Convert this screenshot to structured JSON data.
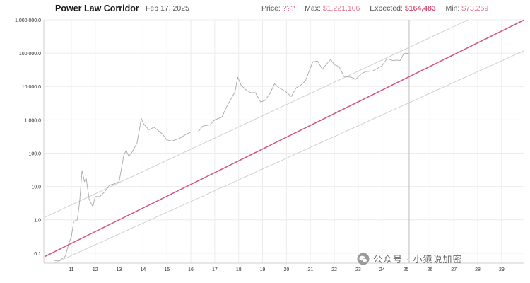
{
  "header": {
    "title": "Power Law Corridor",
    "date": "Feb 17, 2025",
    "price_label": "Price:",
    "price_value": "???",
    "max_label": "Max:",
    "max_value": "$1,221,106",
    "expected_label": "Expected:",
    "expected_value": "$164,483",
    "min_label": "Min:",
    "min_value": "$73,269"
  },
  "watermark": {
    "text": "公众号 · 小猿说加密"
  },
  "colors": {
    "expected_line": "#d2557a",
    "bound_line": "#cccccc",
    "price_line": "#a9a9a9",
    "accent": "#e0708a"
  },
  "chart_data": {
    "type": "line",
    "title": "Power Law Corridor",
    "y_scale": "log",
    "ylim": [
      0.05,
      1000000
    ],
    "xlim": [
      2009.85,
      2029.95
    ],
    "grid": true,
    "y_ticks": [
      {
        "v": 0.1,
        "label": "0.1"
      },
      {
        "v": 1,
        "label": "1.0"
      },
      {
        "v": 10,
        "label": "10.0"
      },
      {
        "v": 100,
        "label": "100.0"
      },
      {
        "v": 1000,
        "label": "1,000.0"
      },
      {
        "v": 10000,
        "label": "10,000.0"
      },
      {
        "v": 100000,
        "label": "100,000.0"
      },
      {
        "v": 1000000,
        "label": "1,000,000.0"
      }
    ],
    "x_ticks": [
      {
        "v": 2011,
        "label": "11"
      },
      {
        "v": 2012,
        "label": "12"
      },
      {
        "v": 2013,
        "label": "13"
      },
      {
        "v": 2014,
        "label": "14"
      },
      {
        "v": 2015,
        "label": "15"
      },
      {
        "v": 2016,
        "label": "16"
      },
      {
        "v": 2017,
        "label": "17"
      },
      {
        "v": 2018,
        "label": "18"
      },
      {
        "v": 2019,
        "label": "19"
      },
      {
        "v": 2020,
        "label": "20"
      },
      {
        "v": 2021,
        "label": "21"
      },
      {
        "v": 2022,
        "label": "22"
      },
      {
        "v": 2023,
        "label": "23"
      },
      {
        "v": 2024,
        "label": "24"
      },
      {
        "v": 2025,
        "label": "25"
      },
      {
        "v": 2026,
        "label": "26"
      },
      {
        "v": 2027,
        "label": "27"
      },
      {
        "v": 2028,
        "label": "28"
      },
      {
        "v": 2029,
        "label": "29"
      }
    ],
    "marker_x": 2025.13,
    "series": [
      {
        "key": "upper",
        "points": [
          [
            2009.9,
            1.2
          ],
          [
            2027.6,
            1000000
          ]
        ]
      },
      {
        "key": "expected",
        "points": [
          [
            2009.9,
            0.08
          ],
          [
            2029.95,
            1000000
          ]
        ]
      },
      {
        "key": "lower",
        "points": [
          [
            2010.3,
            0.05
          ],
          [
            2029.95,
            120000
          ]
        ]
      },
      {
        "key": "price",
        "points": [
          [
            2010.3,
            0.06
          ],
          [
            2010.5,
            0.06
          ],
          [
            2010.75,
            0.08
          ],
          [
            2010.9,
            0.2
          ],
          [
            2011.0,
            0.3
          ],
          [
            2011.1,
            0.9
          ],
          [
            2011.25,
            1.0
          ],
          [
            2011.35,
            3.5
          ],
          [
            2011.45,
            30
          ],
          [
            2011.55,
            14
          ],
          [
            2011.62,
            18
          ],
          [
            2011.75,
            4
          ],
          [
            2011.9,
            2.5
          ],
          [
            2012.0,
            5
          ],
          [
            2012.2,
            5
          ],
          [
            2012.4,
            7
          ],
          [
            2012.6,
            11
          ],
          [
            2012.8,
            12
          ],
          [
            2013.0,
            14
          ],
          [
            2013.2,
            90
          ],
          [
            2013.3,
            120
          ],
          [
            2013.4,
            80
          ],
          [
            2013.55,
            110
          ],
          [
            2013.75,
            200
          ],
          [
            2013.93,
            1100
          ],
          [
            2014.0,
            800
          ],
          [
            2014.1,
            650
          ],
          [
            2014.25,
            500
          ],
          [
            2014.45,
            600
          ],
          [
            2014.6,
            500
          ],
          [
            2014.8,
            380
          ],
          [
            2015.0,
            250
          ],
          [
            2015.2,
            230
          ],
          [
            2015.5,
            270
          ],
          [
            2015.8,
            370
          ],
          [
            2016.0,
            430
          ],
          [
            2016.3,
            430
          ],
          [
            2016.5,
            650
          ],
          [
            2016.8,
            700
          ],
          [
            2017.0,
            1000
          ],
          [
            2017.3,
            1200
          ],
          [
            2017.5,
            2500
          ],
          [
            2017.7,
            4500
          ],
          [
            2017.85,
            7000
          ],
          [
            2017.96,
            19000
          ],
          [
            2018.1,
            11000
          ],
          [
            2018.3,
            8000
          ],
          [
            2018.5,
            6500
          ],
          [
            2018.7,
            6500
          ],
          [
            2018.92,
            3400
          ],
          [
            2019.1,
            3800
          ],
          [
            2019.3,
            6000
          ],
          [
            2019.5,
            12000
          ],
          [
            2019.7,
            9000
          ],
          [
            2019.95,
            7200
          ],
          [
            2020.2,
            5000
          ],
          [
            2020.4,
            9000
          ],
          [
            2020.6,
            11000
          ],
          [
            2020.8,
            15000
          ],
          [
            2020.95,
            29000
          ],
          [
            2021.1,
            55000
          ],
          [
            2021.3,
            58000
          ],
          [
            2021.5,
            33000
          ],
          [
            2021.65,
            45000
          ],
          [
            2021.85,
            65000
          ],
          [
            2022.0,
            45000
          ],
          [
            2022.2,
            40000
          ],
          [
            2022.4,
            20000
          ],
          [
            2022.7,
            19000
          ],
          [
            2022.9,
            16500
          ],
          [
            2023.1,
            23000
          ],
          [
            2023.3,
            28000
          ],
          [
            2023.6,
            29000
          ],
          [
            2023.8,
            35000
          ],
          [
            2024.0,
            42000
          ],
          [
            2024.2,
            68000
          ],
          [
            2024.45,
            60000
          ],
          [
            2024.6,
            62000
          ],
          [
            2024.75,
            60000
          ],
          [
            2024.9,
            95000
          ],
          [
            2025.0,
            100000
          ],
          [
            2025.13,
            96000
          ]
        ]
      }
    ]
  }
}
